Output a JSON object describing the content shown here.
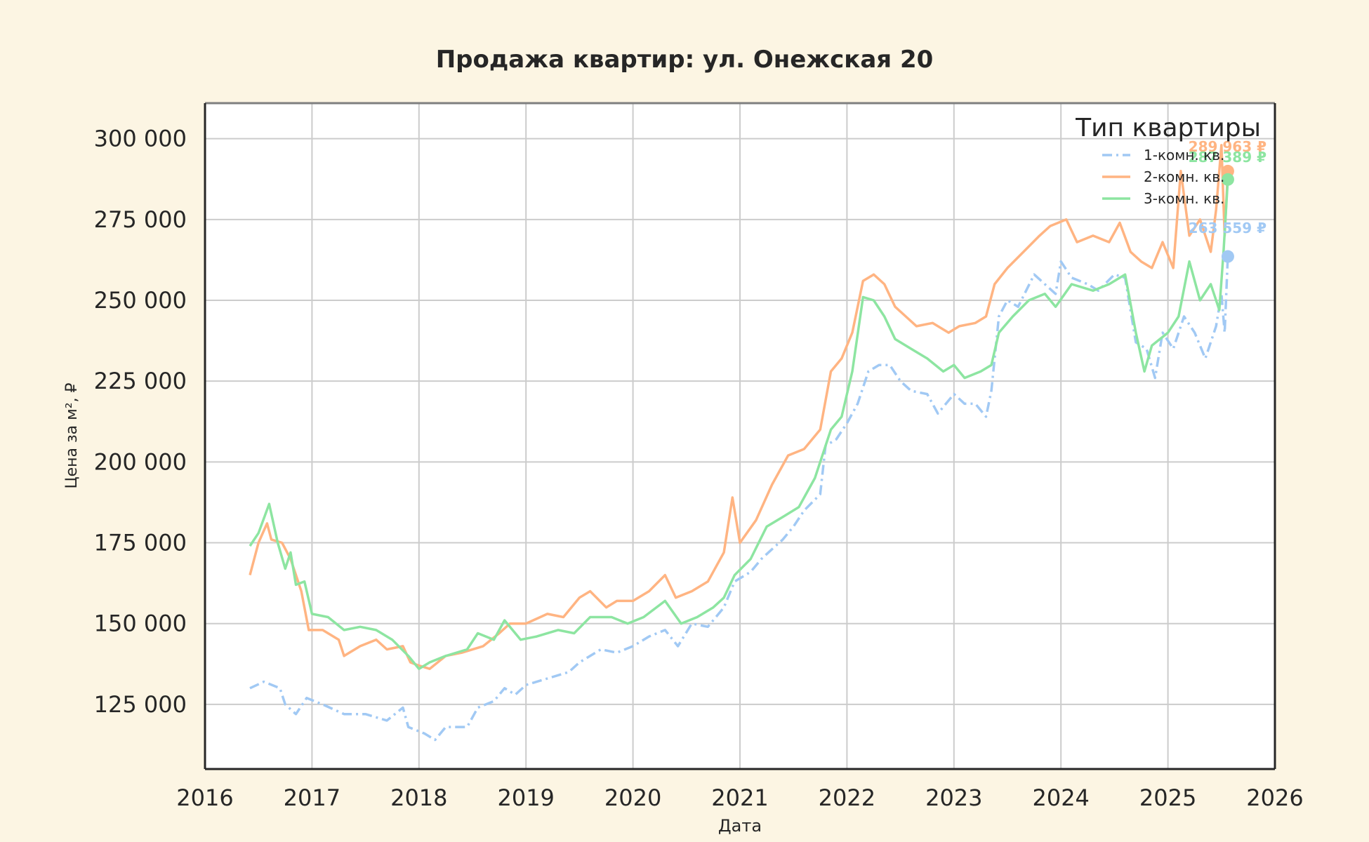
{
  "chart_data": {
    "type": "line",
    "title": "Продажа квартир: ул. Онежская 20",
    "xlabel": "Дата",
    "ylabel": "Цена за м², ₽",
    "x_ticks": [
      "2016",
      "2017",
      "2018",
      "2019",
      "2020",
      "2021",
      "2022",
      "2023",
      "2024",
      "2025",
      "2026"
    ],
    "y_ticks": [
      "125 000",
      "150 000",
      "175 000",
      "200 000",
      "225 000",
      "250 000",
      "275 000",
      "300 000"
    ],
    "xlim": [
      2016.0,
      2026.0
    ],
    "ylim": [
      105000,
      311000
    ],
    "grid": true,
    "legend": {
      "title": "Тип квартиры",
      "placement": "top-right"
    },
    "series": [
      {
        "name": "1-комн. кв.",
        "color": "#a1c9f4",
        "style": "dashdot",
        "end_label": "263 559 ₽",
        "end_value": 263559,
        "points": [
          [
            2016.42,
            130000
          ],
          [
            2016.55,
            132000
          ],
          [
            2016.7,
            130000
          ],
          [
            2016.75,
            125000
          ],
          [
            2016.85,
            122000
          ],
          [
            2016.95,
            127000
          ],
          [
            2017.1,
            125000
          ],
          [
            2017.3,
            122000
          ],
          [
            2017.5,
            122000
          ],
          [
            2017.7,
            120000
          ],
          [
            2017.85,
            124000
          ],
          [
            2017.9,
            118000
          ],
          [
            2018.05,
            116000
          ],
          [
            2018.15,
            114000
          ],
          [
            2018.25,
            118000
          ],
          [
            2018.45,
            118000
          ],
          [
            2018.55,
            124000
          ],
          [
            2018.7,
            126000
          ],
          [
            2018.8,
            130000
          ],
          [
            2018.9,
            128000
          ],
          [
            2019.0,
            131000
          ],
          [
            2019.2,
            133000
          ],
          [
            2019.4,
            135000
          ],
          [
            2019.5,
            138000
          ],
          [
            2019.7,
            142000
          ],
          [
            2019.85,
            141000
          ],
          [
            2020.0,
            143000
          ],
          [
            2020.15,
            146000
          ],
          [
            2020.3,
            148000
          ],
          [
            2020.42,
            143000
          ],
          [
            2020.55,
            150000
          ],
          [
            2020.7,
            149000
          ],
          [
            2020.85,
            155000
          ],
          [
            2020.95,
            163000
          ],
          [
            2021.1,
            166000
          ],
          [
            2021.2,
            170000
          ],
          [
            2021.3,
            173000
          ],
          [
            2021.4,
            176000
          ],
          [
            2021.5,
            180000
          ],
          [
            2021.6,
            185000
          ],
          [
            2021.75,
            190000
          ],
          [
            2021.8,
            205000
          ],
          [
            2021.9,
            207000
          ],
          [
            2022.0,
            212000
          ],
          [
            2022.1,
            218000
          ],
          [
            2022.2,
            228000
          ],
          [
            2022.3,
            230000
          ],
          [
            2022.4,
            230000
          ],
          [
            2022.5,
            225000
          ],
          [
            2022.6,
            222000
          ],
          [
            2022.75,
            221000
          ],
          [
            2022.85,
            215000
          ],
          [
            2023.0,
            221000
          ],
          [
            2023.1,
            218000
          ],
          [
            2023.2,
            218000
          ],
          [
            2023.3,
            214000
          ],
          [
            2023.35,
            222000
          ],
          [
            2023.42,
            245000
          ],
          [
            2023.5,
            250000
          ],
          [
            2023.6,
            248000
          ],
          [
            2023.75,
            258000
          ],
          [
            2023.85,
            255000
          ],
          [
            2023.95,
            252000
          ],
          [
            2024.0,
            262000
          ],
          [
            2024.1,
            257000
          ],
          [
            2024.25,
            255000
          ],
          [
            2024.35,
            253000
          ],
          [
            2024.5,
            258000
          ],
          [
            2024.6,
            257000
          ],
          [
            2024.7,
            237000
          ],
          [
            2024.8,
            235000
          ],
          [
            2024.88,
            226000
          ],
          [
            2024.95,
            240000
          ],
          [
            2025.05,
            235000
          ],
          [
            2025.15,
            245000
          ],
          [
            2025.25,
            240000
          ],
          [
            2025.35,
            232000
          ],
          [
            2025.45,
            242000
          ],
          [
            2025.5,
            252000
          ],
          [
            2025.53,
            240000
          ],
          [
            2025.56,
            263559
          ]
        ]
      },
      {
        "name": "2-комн. кв.",
        "color": "#ffb482",
        "style": "solid",
        "end_label": "289 963 ₽",
        "end_value": 289963,
        "points": [
          [
            2016.42,
            165000
          ],
          [
            2016.5,
            175000
          ],
          [
            2016.58,
            181000
          ],
          [
            2016.62,
            176000
          ],
          [
            2016.72,
            175000
          ],
          [
            2016.8,
            170000
          ],
          [
            2016.9,
            160000
          ],
          [
            2016.97,
            148000
          ],
          [
            2017.1,
            148000
          ],
          [
            2017.25,
            145000
          ],
          [
            2017.3,
            140000
          ],
          [
            2017.45,
            143000
          ],
          [
            2017.6,
            145000
          ],
          [
            2017.7,
            142000
          ],
          [
            2017.85,
            143000
          ],
          [
            2017.92,
            138000
          ],
          [
            2018.0,
            137000
          ],
          [
            2018.1,
            136000
          ],
          [
            2018.25,
            140000
          ],
          [
            2018.4,
            141000
          ],
          [
            2018.6,
            143000
          ],
          [
            2018.75,
            147000
          ],
          [
            2018.85,
            150000
          ],
          [
            2019.0,
            150000
          ],
          [
            2019.2,
            153000
          ],
          [
            2019.35,
            152000
          ],
          [
            2019.5,
            158000
          ],
          [
            2019.6,
            160000
          ],
          [
            2019.75,
            155000
          ],
          [
            2019.85,
            157000
          ],
          [
            2020.0,
            157000
          ],
          [
            2020.15,
            160000
          ],
          [
            2020.3,
            165000
          ],
          [
            2020.4,
            158000
          ],
          [
            2020.55,
            160000
          ],
          [
            2020.7,
            163000
          ],
          [
            2020.85,
            172000
          ],
          [
            2020.93,
            189000
          ],
          [
            2021.0,
            175000
          ],
          [
            2021.15,
            182000
          ],
          [
            2021.3,
            193000
          ],
          [
            2021.45,
            202000
          ],
          [
            2021.6,
            204000
          ],
          [
            2021.75,
            210000
          ],
          [
            2021.85,
            228000
          ],
          [
            2021.95,
            232000
          ],
          [
            2022.05,
            240000
          ],
          [
            2022.15,
            256000
          ],
          [
            2022.25,
            258000
          ],
          [
            2022.35,
            255000
          ],
          [
            2022.45,
            248000
          ],
          [
            2022.55,
            245000
          ],
          [
            2022.65,
            242000
          ],
          [
            2022.8,
            243000
          ],
          [
            2022.95,
            240000
          ],
          [
            2023.05,
            242000
          ],
          [
            2023.2,
            243000
          ],
          [
            2023.3,
            245000
          ],
          [
            2023.38,
            255000
          ],
          [
            2023.5,
            260000
          ],
          [
            2023.65,
            265000
          ],
          [
            2023.8,
            270000
          ],
          [
            2023.9,
            273000
          ],
          [
            2024.05,
            275000
          ],
          [
            2024.15,
            268000
          ],
          [
            2024.3,
            270000
          ],
          [
            2024.45,
            268000
          ],
          [
            2024.55,
            274000
          ],
          [
            2024.65,
            265000
          ],
          [
            2024.75,
            262000
          ],
          [
            2024.85,
            260000
          ],
          [
            2024.95,
            268000
          ],
          [
            2025.05,
            260000
          ],
          [
            2025.12,
            290000
          ],
          [
            2025.2,
            270000
          ],
          [
            2025.3,
            275000
          ],
          [
            2025.4,
            265000
          ],
          [
            2025.45,
            278000
          ],
          [
            2025.5,
            298000
          ],
          [
            2025.53,
            270000
          ],
          [
            2025.56,
            289963
          ]
        ]
      },
      {
        "name": "3-комн. кв.",
        "color": "#8de5a1",
        "style": "solid",
        "end_label": "287 389 ₽",
        "end_value": 287389,
        "points": [
          [
            2016.42,
            174000
          ],
          [
            2016.5,
            178000
          ],
          [
            2016.6,
            187000
          ],
          [
            2016.68,
            175000
          ],
          [
            2016.75,
            167000
          ],
          [
            2016.8,
            172000
          ],
          [
            2016.85,
            162000
          ],
          [
            2016.93,
            163000
          ],
          [
            2017.0,
            153000
          ],
          [
            2017.15,
            152000
          ],
          [
            2017.3,
            148000
          ],
          [
            2017.45,
            149000
          ],
          [
            2017.6,
            148000
          ],
          [
            2017.75,
            145000
          ],
          [
            2017.9,
            140000
          ],
          [
            2018.0,
            136000
          ],
          [
            2018.1,
            138000
          ],
          [
            2018.25,
            140000
          ],
          [
            2018.45,
            142000
          ],
          [
            2018.55,
            147000
          ],
          [
            2018.7,
            145000
          ],
          [
            2018.8,
            151000
          ],
          [
            2018.95,
            145000
          ],
          [
            2019.1,
            146000
          ],
          [
            2019.3,
            148000
          ],
          [
            2019.45,
            147000
          ],
          [
            2019.6,
            152000
          ],
          [
            2019.8,
            152000
          ],
          [
            2019.95,
            150000
          ],
          [
            2020.1,
            152000
          ],
          [
            2020.3,
            157000
          ],
          [
            2020.45,
            150000
          ],
          [
            2020.6,
            152000
          ],
          [
            2020.75,
            155000
          ],
          [
            2020.85,
            158000
          ],
          [
            2020.95,
            165000
          ],
          [
            2021.1,
            170000
          ],
          [
            2021.25,
            180000
          ],
          [
            2021.4,
            183000
          ],
          [
            2021.55,
            186000
          ],
          [
            2021.7,
            195000
          ],
          [
            2021.85,
            210000
          ],
          [
            2021.95,
            214000
          ],
          [
            2022.05,
            228000
          ],
          [
            2022.15,
            251000
          ],
          [
            2022.25,
            250000
          ],
          [
            2022.35,
            245000
          ],
          [
            2022.45,
            238000
          ],
          [
            2022.6,
            235000
          ],
          [
            2022.75,
            232000
          ],
          [
            2022.9,
            228000
          ],
          [
            2023.0,
            230000
          ],
          [
            2023.1,
            226000
          ],
          [
            2023.25,
            228000
          ],
          [
            2023.35,
            230000
          ],
          [
            2023.42,
            240000
          ],
          [
            2023.55,
            245000
          ],
          [
            2023.7,
            250000
          ],
          [
            2023.85,
            252000
          ],
          [
            2023.95,
            248000
          ],
          [
            2024.1,
            255000
          ],
          [
            2024.3,
            253000
          ],
          [
            2024.45,
            255000
          ],
          [
            2024.6,
            258000
          ],
          [
            2024.7,
            240000
          ],
          [
            2024.78,
            228000
          ],
          [
            2024.85,
            236000
          ],
          [
            2025.0,
            240000
          ],
          [
            2025.1,
            245000
          ],
          [
            2025.2,
            262000
          ],
          [
            2025.3,
            250000
          ],
          [
            2025.4,
            255000
          ],
          [
            2025.48,
            247000
          ],
          [
            2025.52,
            265000
          ],
          [
            2025.56,
            287389
          ]
        ]
      }
    ]
  }
}
